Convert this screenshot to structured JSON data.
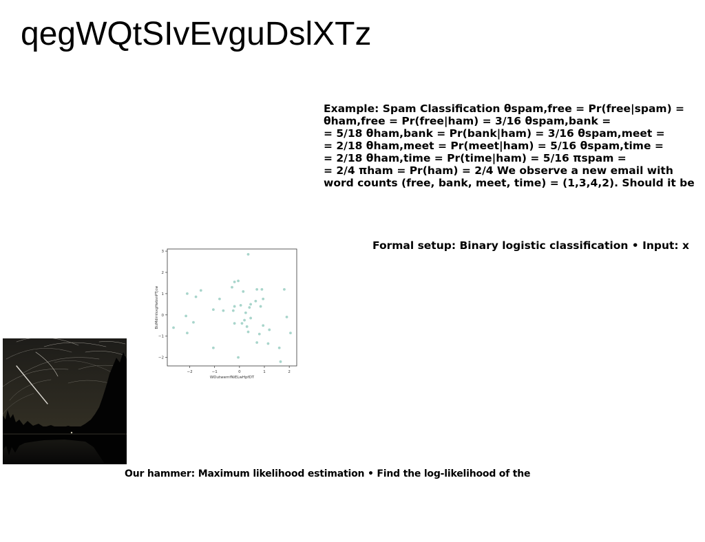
{
  "title": "qegWQtSIvEvguDslXTz",
  "spam_example": {
    "lines": [
      "Example: Spam Classification θspam,free = Pr(free|spam) =",
      "θham,free = Pr(free|ham) = 3/16 θspam,bank =",
      "= 5/18 θham,bank = Pr(bank|ham) = 3/16 θspam,meet =",
      "= 2/18 θham,meet = Pr(meet|ham) = 5/16 θspam,time =",
      "= 2/18 θham,time = Pr(time|ham) = 5/16 πspam =",
      "= 2/4 πham = Pr(ham) = 2/4 We observe a new email with",
      "word counts (free, bank, meet, time) = (1,3,4,2). Should it be"
    ]
  },
  "formal_setup": "Formal setup: Binary logistic classification • Input: x",
  "hammer": "Our hammer: Maximum likelihood estimation • Find the log-likelihood of the",
  "chart_data": {
    "type": "scatter",
    "xlabel": "WDutwemfNiELwHpfDT",
    "ylabel": "BizMdirnlsxgHwbsnPTjcw",
    "xlim": [
      -2.9,
      2.3
    ],
    "ylim": [
      -2.4,
      3.1
    ],
    "x_ticks": [
      -2,
      -1,
      0,
      1,
      2
    ],
    "y_ticks": [
      -2,
      -1,
      0,
      1,
      2,
      3
    ],
    "x_tick_labels": [
      "−2",
      "−1",
      "0",
      "1",
      "2"
    ],
    "y_tick_labels": [
      "−2",
      "−1",
      "0",
      "1",
      "2",
      "3"
    ],
    "grid": false,
    "point_color": "#a8d5cb",
    "points": [
      [
        -2.65,
        -0.6
      ],
      [
        -2.15,
        -0.05
      ],
      [
        -2.1,
        1.0
      ],
      [
        -2.1,
        -0.85
      ],
      [
        -1.85,
        -0.35
      ],
      [
        -1.75,
        0.85
      ],
      [
        -1.55,
        1.15
      ],
      [
        -1.05,
        0.25
      ],
      [
        -1.05,
        -1.55
      ],
      [
        -0.8,
        0.75
      ],
      [
        -0.65,
        0.2
      ],
      [
        -0.3,
        1.3
      ],
      [
        -0.25,
        0.2
      ],
      [
        -0.2,
        1.55
      ],
      [
        -0.2,
        0.4
      ],
      [
        -0.2,
        -0.4
      ],
      [
        -0.05,
        1.6
      ],
      [
        -0.05,
        -2.0
      ],
      [
        0.05,
        0.45
      ],
      [
        0.1,
        -0.4
      ],
      [
        0.15,
        1.1
      ],
      [
        0.2,
        -0.25
      ],
      [
        0.25,
        0.1
      ],
      [
        0.3,
        -0.55
      ],
      [
        0.35,
        -0.8
      ],
      [
        0.35,
        2.85
      ],
      [
        0.4,
        0.35
      ],
      [
        0.45,
        -0.15
      ],
      [
        0.45,
        0.5
      ],
      [
        0.65,
        0.65
      ],
      [
        0.7,
        1.2
      ],
      [
        0.7,
        -1.3
      ],
      [
        0.8,
        -0.9
      ],
      [
        0.85,
        0.4
      ],
      [
        0.9,
        1.2
      ],
      [
        0.95,
        0.75
      ],
      [
        0.95,
        -0.5
      ],
      [
        1.15,
        -1.35
      ],
      [
        1.2,
        -0.7
      ],
      [
        1.6,
        -1.55
      ],
      [
        1.65,
        -2.2
      ],
      [
        1.8,
        1.2
      ],
      [
        1.9,
        -0.1
      ],
      [
        2.05,
        -0.85
      ]
    ]
  },
  "photo": {
    "subject": "night sky star trails over tree silhouettes reflected in a lake",
    "icon": "photo-icon",
    "colors": {
      "sky_top": "#1d1c19",
      "sky_horizon": "#3a3628",
      "trees": "#050505",
      "water": "#0c0c0b",
      "trail": "#d9d6cf"
    }
  }
}
